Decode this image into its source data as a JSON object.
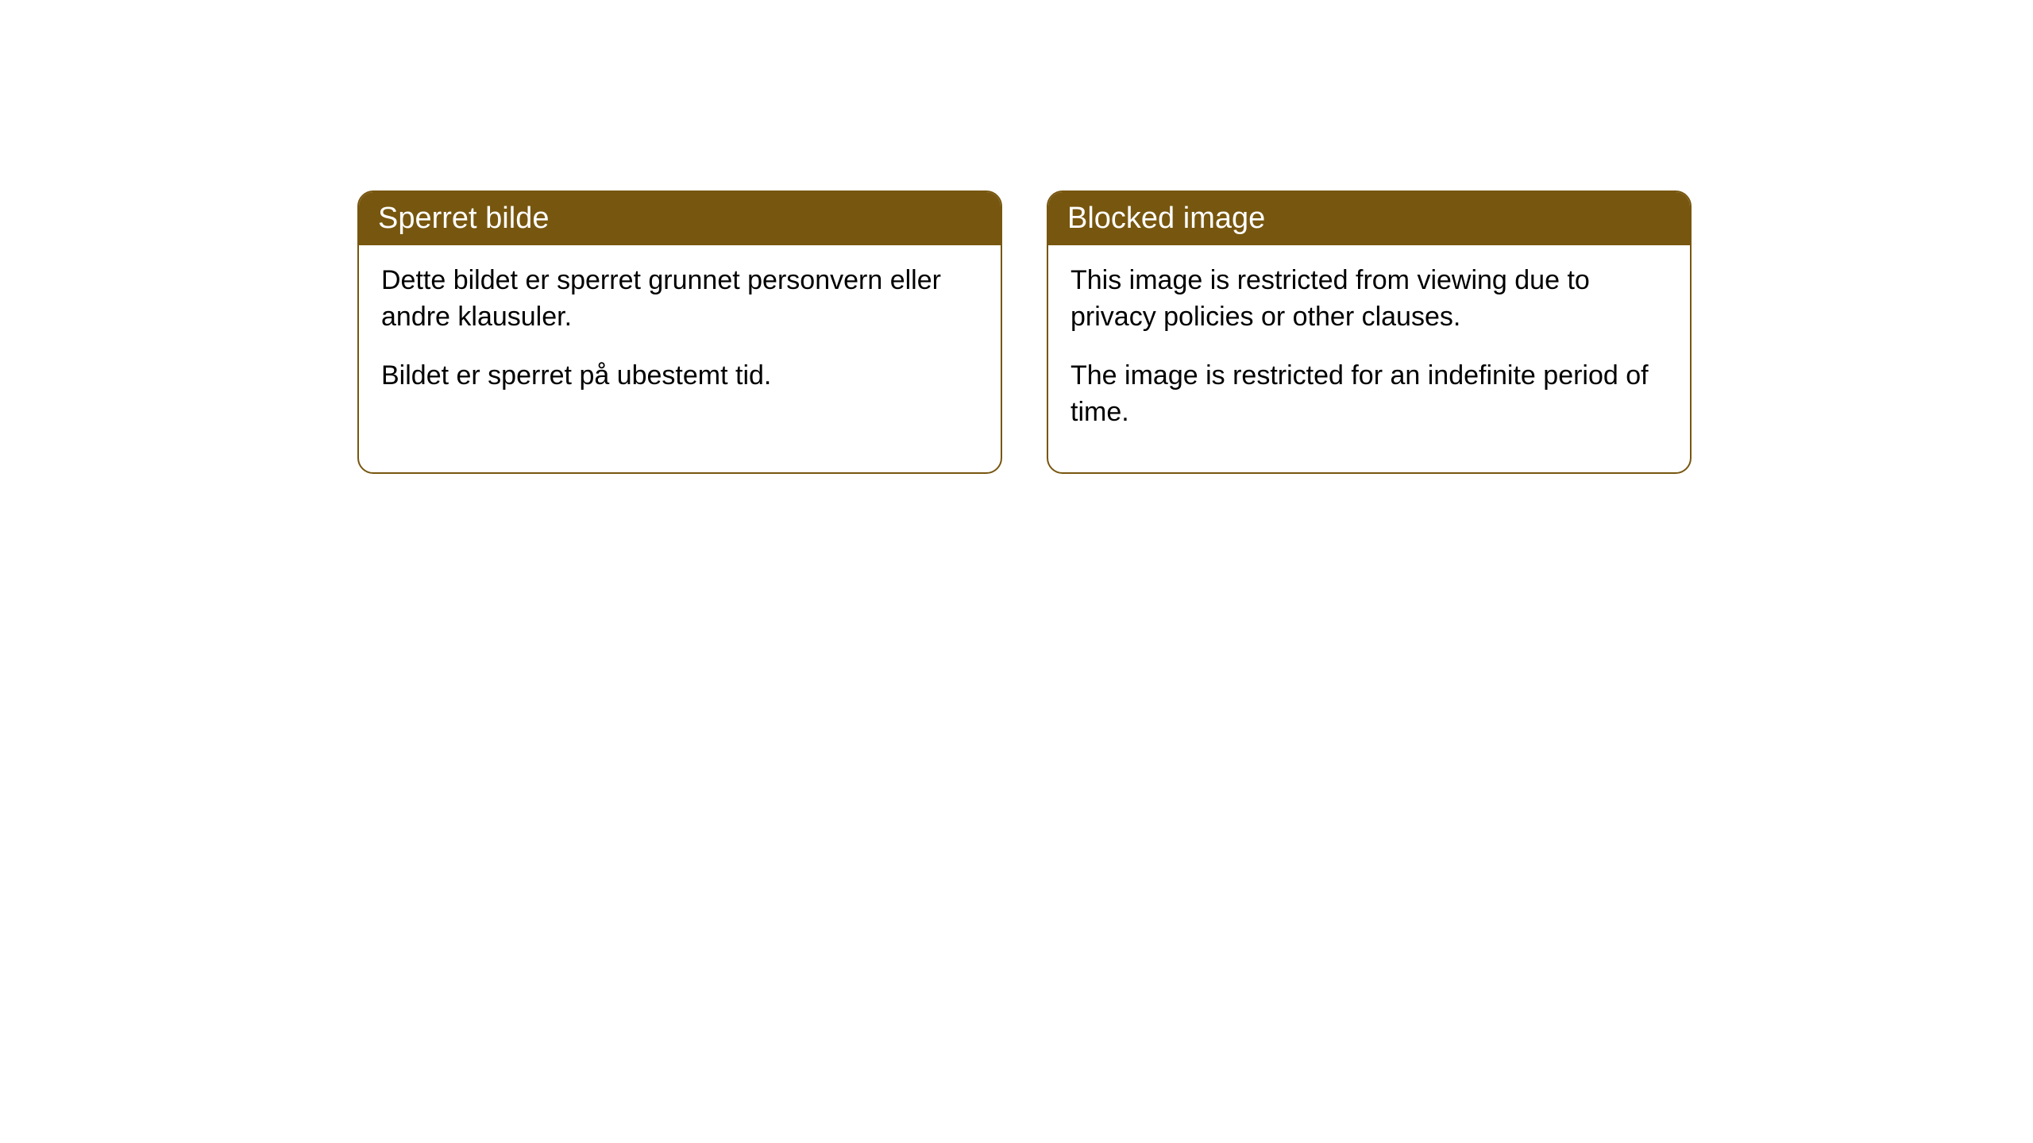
{
  "cards": [
    {
      "title": "Sperret bilde",
      "paragraph1": "Dette bildet er sperret grunnet personvern eller andre klausuler.",
      "paragraph2": "Bildet er sperret på ubestemt tid."
    },
    {
      "title": "Blocked image",
      "paragraph1": "This image is restricted from viewing due to privacy policies or other clauses.",
      "paragraph2": "The image is restricted for an indefinite period of time."
    }
  ],
  "styling": {
    "header_background": "#77560f",
    "header_text_color": "#ffffff",
    "border_color": "#77560f",
    "body_text_color": "#000000",
    "card_background": "#ffffff",
    "border_radius": 20,
    "title_fontsize": 38,
    "body_fontsize": 34
  }
}
